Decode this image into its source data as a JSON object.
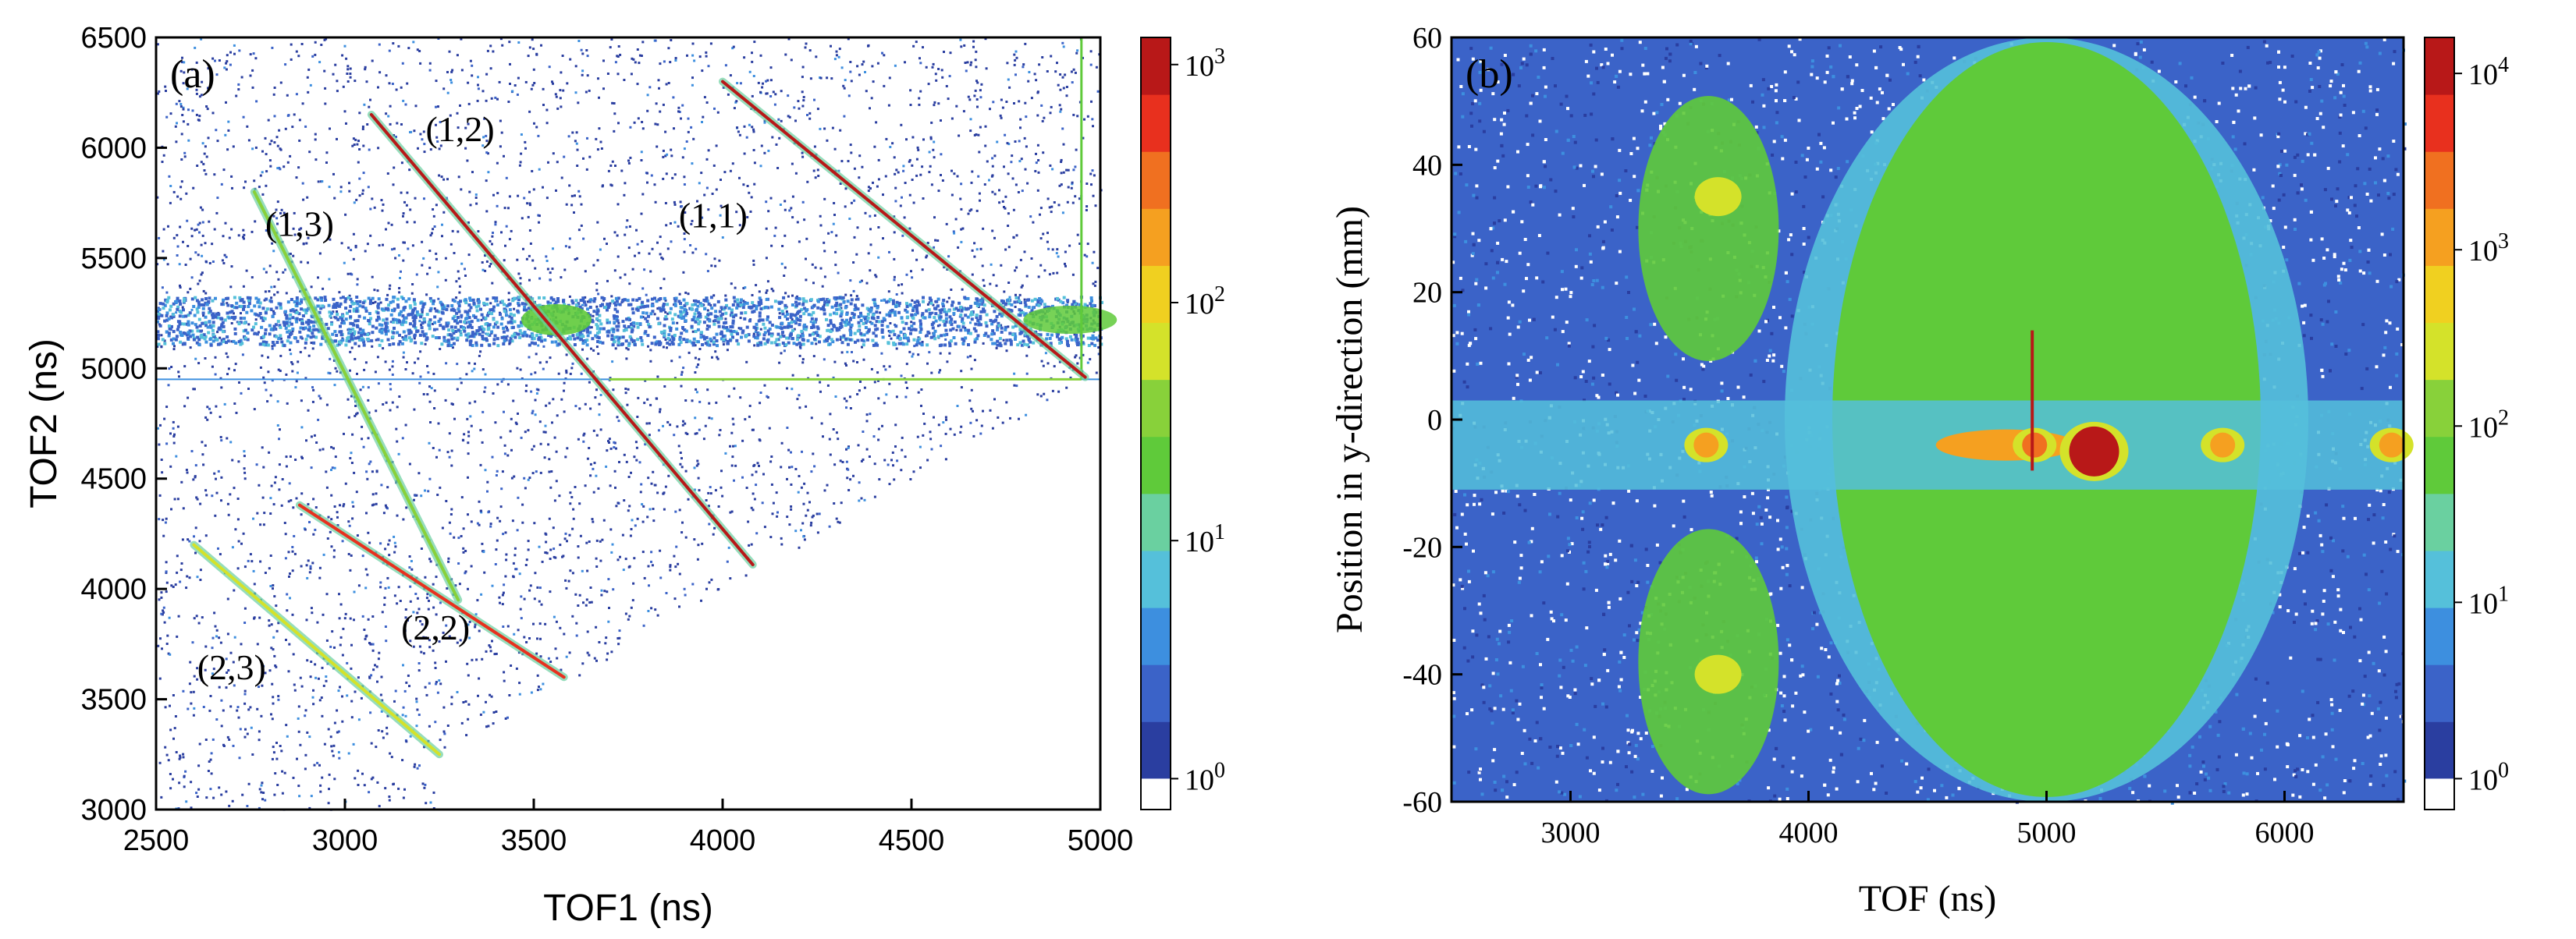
{
  "chart_data": [
    {
      "type": "heatmap",
      "panel_label": "(a)",
      "xlabel": "TOF1 (ns)",
      "ylabel": "TOF2 (ns)",
      "xlim": [
        2500,
        5000
      ],
      "ylim": [
        3000,
        6500
      ],
      "xticks": [
        2500,
        3000,
        3500,
        4000,
        4500,
        5000
      ],
      "yticks": [
        3000,
        3500,
        4000,
        4500,
        5000,
        5500,
        6000,
        6500
      ],
      "xtick_labels": [
        "2500",
        "3000",
        "3500",
        "4000",
        "4500",
        "5000"
      ],
      "ytick_labels": [
        "3000",
        "3500",
        "4000",
        "4500",
        "5000",
        "5500",
        "6000",
        "6500"
      ],
      "colorbar": {
        "scale": "log",
        "range": [
          1,
          1300
        ],
        "tick_values": [
          1,
          10,
          100,
          1000
        ],
        "tick_labels": [
          {
            "base": "10",
            "exp": "0"
          },
          {
            "base": "10",
            "exp": "1"
          },
          {
            "base": "10",
            "exp": "2"
          },
          {
            "base": "10",
            "exp": "3"
          }
        ]
      },
      "coincidence_lines": [
        {
          "label": "(1,1)",
          "from": [
            4000,
            6300
          ],
          "to": [
            4960,
            4960
          ],
          "peak": 1000
        },
        {
          "label": "(1,2)",
          "from": [
            3070,
            6150
          ],
          "to": [
            4080,
            4110
          ],
          "peak": 900
        },
        {
          "label": "(1,3)",
          "from": [
            2760,
            5800
          ],
          "to": [
            3300,
            3950
          ],
          "peak": 30
        },
        {
          "label": "(2,2)",
          "from": [
            2880,
            4380
          ],
          "to": [
            3580,
            3600
          ],
          "peak": 700
        },
        {
          "label": "(2,3)",
          "from": [
            2600,
            4200
          ],
          "to": [
            3250,
            3250
          ],
          "peak": 60
        }
      ],
      "annotations": [
        {
          "text": "(1,1)",
          "x": 3975,
          "y": 5640
        },
        {
          "text": "(1,2)",
          "x": 3305,
          "y": 6030
        },
        {
          "text": "(1,3)",
          "x": 2880,
          "y": 5600
        },
        {
          "text": "(2,2)",
          "x": 3240,
          "y": 3770
        },
        {
          "text": "(2,3)",
          "x": 2700,
          "y": 3590
        }
      ]
    },
    {
      "type": "heatmap",
      "panel_label": "(b)",
      "xlabel": "TOF (ns)",
      "ylabel": "Position in y-direction (mm)",
      "xlim": [
        2500,
        6500
      ],
      "ylim": [
        -60,
        60
      ],
      "xticks": [
        3000,
        4000,
        5000,
        6000
      ],
      "yticks": [
        -60,
        -40,
        -20,
        0,
        20,
        40,
        60
      ],
      "xtick_labels": [
        "3000",
        "4000",
        "5000",
        "6000"
      ],
      "ytick_labels": [
        "-60",
        "-40",
        "-20",
        "0",
        "20",
        "40",
        "60"
      ],
      "colorbar": {
        "scale": "log",
        "range": [
          1,
          16000
        ],
        "tick_values": [
          1,
          10,
          100,
          1000,
          10000
        ],
        "tick_labels": [
          {
            "base": "10",
            "exp": "0"
          },
          {
            "base": "10",
            "exp": "1"
          },
          {
            "base": "10",
            "exp": "2"
          },
          {
            "base": "10",
            "exp": "3"
          },
          {
            "base": "10",
            "exp": "4"
          }
        ]
      },
      "hot_spots": [
        {
          "tof": 3570,
          "y": -4,
          "peak": 1500
        },
        {
          "tof": 4950,
          "y": -4,
          "peak": 2000
        },
        {
          "tof": 5200,
          "y": -5,
          "peak": 15000
        },
        {
          "tof": 5740,
          "y": -4,
          "peak": 1200
        },
        {
          "tof": 6450,
          "y": -4,
          "peak": 1200
        }
      ]
    }
  ],
  "colormap": [
    "#ffffff",
    "#2a3ea0",
    "#3b63c8",
    "#3d8fdf",
    "#55c0da",
    "#6ad0a0",
    "#5fca3a",
    "#88d13a",
    "#d4e22a",
    "#f0d020",
    "#f5a020",
    "#f07020",
    "#e8301e",
    "#b81818"
  ]
}
